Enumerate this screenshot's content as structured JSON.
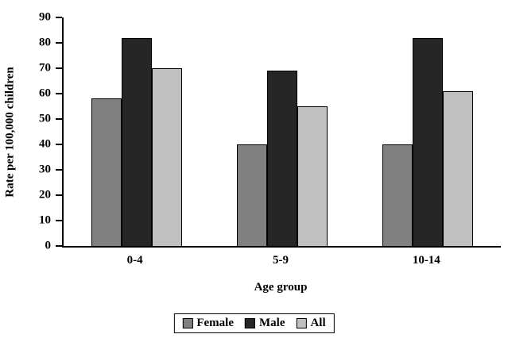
{
  "chart_data": {
    "type": "bar",
    "title": "",
    "xlabel": "Age group",
    "ylabel": "Rate per 100,000 children",
    "categories": [
      "0-4",
      "5-9",
      "10-14"
    ],
    "series": [
      {
        "name": "Female",
        "color": "#808080",
        "values": [
          58,
          40,
          40
        ]
      },
      {
        "name": "Male",
        "color": "#262626",
        "values": [
          82,
          69,
          82
        ]
      },
      {
        "name": "All",
        "color": "#c0c0c0",
        "values": [
          70,
          55,
          61
        ]
      }
    ],
    "ylim": [
      0,
      90
    ],
    "yticks": [
      0,
      10,
      20,
      30,
      40,
      50,
      60,
      70,
      80,
      90
    ],
    "grid": false,
    "legend_position": "bottom",
    "plot_background": "#ffffff"
  }
}
